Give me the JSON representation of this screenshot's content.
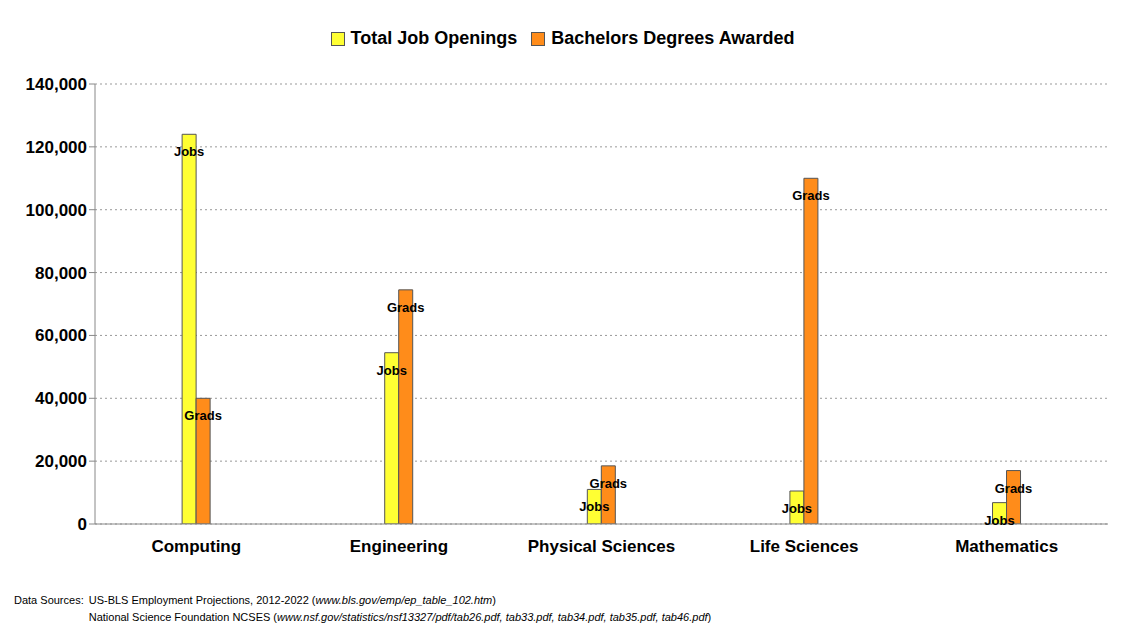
{
  "chart_data": {
    "type": "bar",
    "categories": [
      "Computing",
      "Engineering",
      "Physical Sciences",
      "Life Sciences",
      "Mathematics"
    ],
    "series": [
      {
        "name": "Total Job Openings",
        "label": "Jobs",
        "color": "#ffff33",
        "values": [
          124000,
          54500,
          11000,
          10500,
          6800
        ]
      },
      {
        "name": "Bachelors Degrees Awarded",
        "label": "Grads",
        "color": "#ff8c1a",
        "values": [
          40000,
          74500,
          18500,
          110000,
          17000
        ]
      }
    ],
    "ylim": [
      0,
      140000
    ],
    "yticks": [
      0,
      {
        "value": 20000,
        "label": "20,000"
      },
      {
        "value": 40000,
        "label": "40,000"
      },
      {
        "value": 60000,
        "label": "60,000"
      },
      {
        "value": 80000,
        "label": "80,000"
      },
      {
        "value": 100000,
        "label": "100,000"
      },
      {
        "value": 120000,
        "label": "120,000"
      },
      {
        "value": 140000,
        "label": "140,000"
      }
    ],
    "grid": true,
    "legend": "top",
    "source": {
      "label": "Data Sources:",
      "lines": [
        [
          "US-BLS Employment Projections, 2012-2022 (",
          "www.bls.gov/emp/ep_table_102.htm",
          ")"
        ],
        [
          "National Science Foundation NCSES (",
          "www.nsf.gov/statistics/nsf13327/pdf/tab26.pdf, tab33.pdf, tab34.pdf, tab35.pdf, tab46.pdf",
          ")"
        ]
      ]
    }
  }
}
